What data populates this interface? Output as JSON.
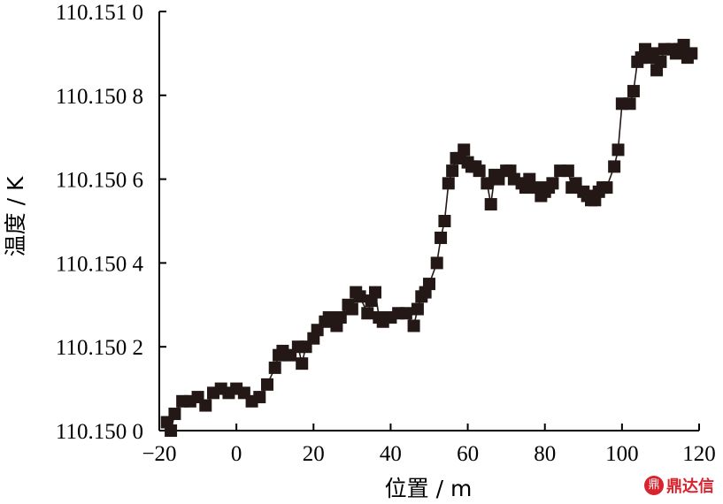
{
  "chart_data": {
    "type": "line",
    "xlabel": "位置 / m",
    "ylabel": "温度 / K",
    "xlim": [
      -20,
      120
    ],
    "ylim": [
      110.15,
      110.151
    ],
    "xticks": [
      -20,
      0,
      20,
      40,
      60,
      80,
      100,
      120
    ],
    "xtick_labels": [
      "−20",
      "0",
      "20",
      "40",
      "60",
      "80",
      "100",
      "120"
    ],
    "yticks": [
      110.15,
      110.1502,
      110.1504,
      110.1506,
      110.1508,
      110.151
    ],
    "ytick_labels": [
      "110.150 0",
      "110.150 2",
      "110.150 4",
      "110.150 6",
      "110.150 8",
      "110.151 0"
    ],
    "grid": false,
    "series": [
      {
        "marker": "square",
        "line": true,
        "color": "#231815",
        "x": [
          -18,
          -17,
          -16,
          -14,
          -12,
          -10,
          -8,
          -6,
          -4,
          -2,
          0,
          2,
          4,
          6,
          8,
          10,
          11,
          12,
          14,
          16,
          17,
          18,
          20,
          21,
          23,
          24,
          26,
          27,
          29,
          30,
          31,
          32,
          34,
          35,
          36,
          37,
          38,
          40,
          42,
          44,
          46,
          47,
          48,
          49,
          50,
          52,
          53,
          54,
          55,
          56,
          57,
          58,
          59,
          60,
          61,
          62,
          63,
          65,
          66,
          67,
          68,
          70,
          71,
          72,
          74,
          75,
          76,
          78,
          79,
          80,
          81,
          82,
          84,
          86,
          87,
          88,
          90,
          91,
          92,
          93,
          94,
          95,
          96,
          98,
          99,
          100,
          102,
          103,
          104,
          105,
          106,
          107,
          108,
          109,
          110,
          111,
          113,
          114,
          115,
          116,
          117,
          118
        ],
        "y": [
          110.15002,
          110.15,
          110.15004,
          110.15007,
          110.15007,
          110.15008,
          110.15006,
          110.15009,
          110.1501,
          110.15009,
          110.1501,
          110.15009,
          110.15007,
          110.15008,
          110.15011,
          110.15015,
          110.15018,
          110.15019,
          110.15018,
          110.1502,
          110.15016,
          110.1502,
          110.15022,
          110.15024,
          110.15026,
          110.15027,
          110.15025,
          110.15027,
          110.1503,
          110.15029,
          110.15033,
          110.15032,
          110.15028,
          110.15031,
          110.15033,
          110.15027,
          110.15026,
          110.15027,
          110.15028,
          110.15028,
          110.15025,
          110.15029,
          110.15032,
          110.15033,
          110.15035,
          110.1504,
          110.15046,
          110.1505,
          110.15059,
          110.15062,
          110.15065,
          110.15065,
          110.15067,
          110.15064,
          110.15063,
          110.15063,
          110.15062,
          110.15059,
          110.15054,
          110.15061,
          110.1506,
          110.15062,
          110.15062,
          110.1506,
          110.15059,
          110.15058,
          110.1506,
          110.15058,
          110.15056,
          110.15057,
          110.15058,
          110.15059,
          110.15062,
          110.15062,
          110.15058,
          110.15059,
          110.15057,
          110.15056,
          110.15055,
          110.15055,
          110.15057,
          110.15058,
          110.15058,
          110.15063,
          110.15067,
          110.15078,
          110.15078,
          110.15081,
          110.15088,
          110.15089,
          110.15091,
          110.15089,
          110.1509,
          110.15086,
          110.15088,
          110.15091,
          110.15091,
          110.1509,
          110.15091,
          110.15092,
          110.15089,
          110.1509
        ]
      }
    ]
  },
  "watermark": {
    "logo": "鼎",
    "text": "鼎达信"
  }
}
